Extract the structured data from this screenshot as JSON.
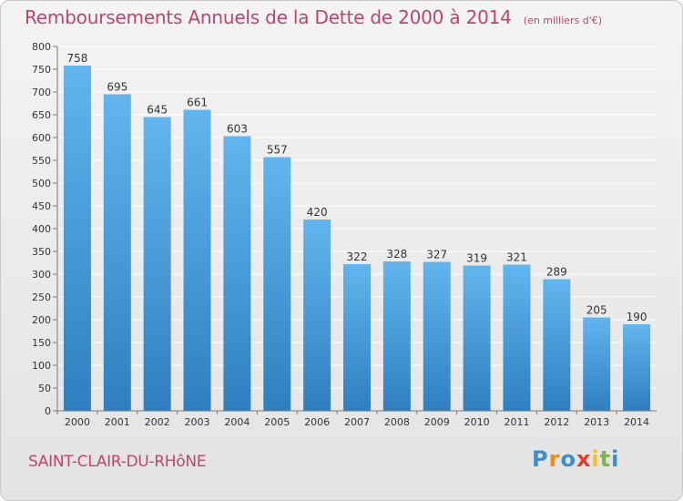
{
  "header": {
    "title": "Remboursements Annuels de la Dette de 2000 à 2014",
    "subtitle": "(en milliers d'€)"
  },
  "footer": {
    "city": "SAINT-CLAIR-DU-RHôNE",
    "logo_text": "Proxiti",
    "logo_colors": [
      "#3b8ed0",
      "#f08a1c",
      "#3b8ed0",
      "#e53a2d",
      "#f0c419",
      "#7ab648",
      "#3b8ed0"
    ]
  },
  "colors": {
    "title": "#c2446b",
    "bar_top": "#62b5ee",
    "bar_bottom": "#2f7fc0",
    "grid": "#ffffff",
    "axis_text": "#333333"
  },
  "chart_data": {
    "type": "bar",
    "categories": [
      "2000",
      "2001",
      "2002",
      "2003",
      "2004",
      "2005",
      "2006",
      "2007",
      "2008",
      "2009",
      "2010",
      "2011",
      "2012",
      "2013",
      "2014"
    ],
    "values": [
      758,
      695,
      645,
      661,
      603,
      557,
      420,
      322,
      328,
      327,
      319,
      321,
      289,
      205,
      190
    ],
    "ylim": [
      0,
      800
    ],
    "yticks": [
      0,
      50,
      100,
      150,
      200,
      250,
      300,
      350,
      400,
      450,
      500,
      550,
      600,
      650,
      700,
      750,
      800
    ],
    "grid": true,
    "data_labels": true
  }
}
